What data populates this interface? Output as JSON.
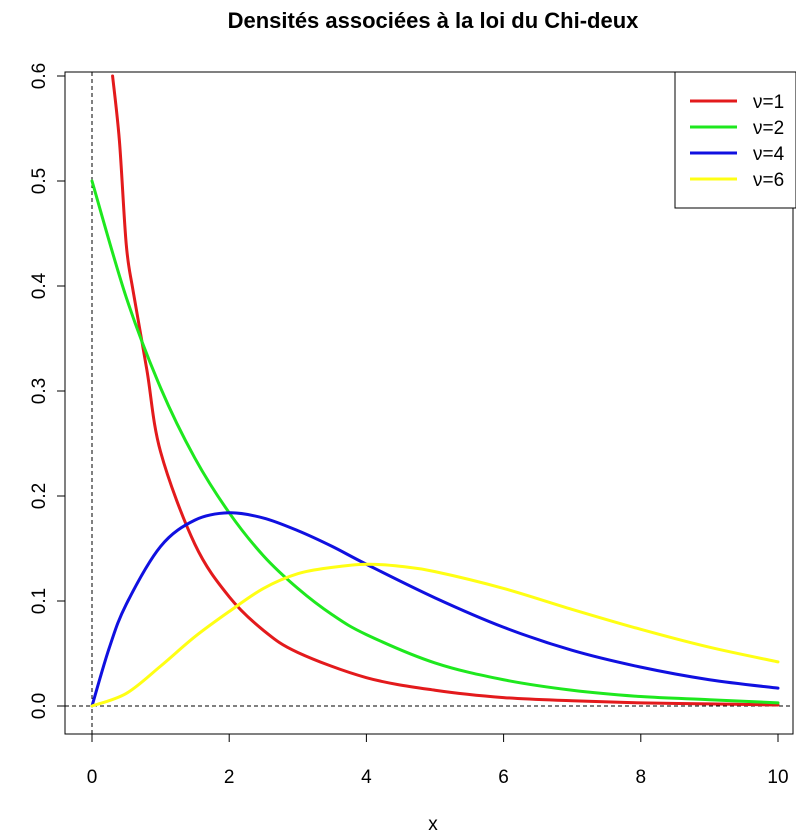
{
  "chart_data": {
    "type": "line",
    "title": "Densités associées à la loi du Chi-deux",
    "xlabel": "x",
    "ylabel": "",
    "xlim": [
      0,
      10
    ],
    "ylim": [
      0,
      0.6
    ],
    "x_ticks": [
      "0",
      "2",
      "4",
      "6",
      "8",
      "10"
    ],
    "y_ticks": [
      "0.0",
      "0.1",
      "0.2",
      "0.3",
      "0.4",
      "0.5",
      "0.6"
    ],
    "legend_position": "top-right",
    "grid": false,
    "reference_lines": [
      "x = 0 (dashed)",
      "y = 0 (dashed)"
    ],
    "series": [
      {
        "name": "ν=1",
        "color": "#e31a1c",
        "x": [
          0.3,
          0.4,
          0.5,
          0.6,
          0.8,
          1.0,
          1.5,
          2.0,
          2.5,
          3.0,
          4.0,
          5.0,
          6.0,
          7.0,
          8.0,
          9.0,
          10.0
        ],
        "y": [
          0.6,
          0.538,
          0.439,
          0.395,
          0.32,
          0.242,
          0.154,
          0.104,
          0.072,
          0.051,
          0.027,
          0.015,
          0.008,
          0.005,
          0.003,
          0.002,
          0.001
        ]
      },
      {
        "name": "ν=2",
        "color": "#1ee81e",
        "x": [
          0,
          0.5,
          1.0,
          1.5,
          2.0,
          2.5,
          3.0,
          3.5,
          4.0,
          5.0,
          6.0,
          7.0,
          8.0,
          9.0,
          10.0
        ],
        "y": [
          0.5,
          0.389,
          0.303,
          0.236,
          0.184,
          0.143,
          0.112,
          0.087,
          0.068,
          0.041,
          0.025,
          0.015,
          0.009,
          0.006,
          0.003
        ]
      },
      {
        "name": "ν=4",
        "color": "#1010e0",
        "x": [
          0,
          0.25,
          0.5,
          1.0,
          1.5,
          2.0,
          2.5,
          3.0,
          3.5,
          4.0,
          5.0,
          6.0,
          7.0,
          8.0,
          9.0,
          10.0
        ],
        "y": [
          0,
          0.055,
          0.097,
          0.152,
          0.177,
          0.184,
          0.179,
          0.167,
          0.152,
          0.135,
          0.103,
          0.075,
          0.053,
          0.037,
          0.025,
          0.017
        ]
      },
      {
        "name": "ν=6",
        "color": "#ffff14",
        "x": [
          0,
          0.5,
          1.0,
          1.5,
          2.0,
          2.5,
          3.0,
          3.5,
          4.0,
          4.5,
          5.0,
          6.0,
          7.0,
          8.0,
          9.0,
          10.0
        ],
        "y": [
          0,
          0.012,
          0.038,
          0.066,
          0.09,
          0.112,
          0.126,
          0.132,
          0.135,
          0.133,
          0.128,
          0.112,
          0.092,
          0.073,
          0.056,
          0.042
        ]
      }
    ]
  }
}
